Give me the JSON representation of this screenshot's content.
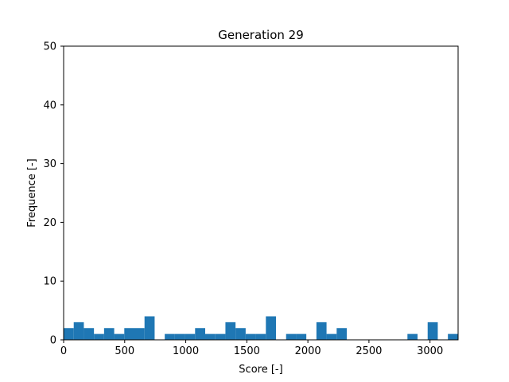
{
  "chart_data": {
    "type": "bar",
    "title": "Generation 29",
    "xlabel": "Score [-]",
    "ylabel": "Frequence [-]",
    "xlim": [
      0,
      3230
    ],
    "ylim": [
      0,
      50
    ],
    "xticks": [
      0,
      500,
      1000,
      1500,
      2000,
      2500,
      3000
    ],
    "yticks": [
      0,
      10,
      20,
      30,
      40,
      50
    ],
    "bin_width": 82.8,
    "bin_starts": [
      0,
      82.8,
      165.6,
      248.4,
      331.2,
      414,
      496.8,
      579.6,
      662.4,
      745.2,
      828,
      910.8,
      993.6,
      1076.4,
      1159.2,
      1242,
      1324.8,
      1407.6,
      1490.4,
      1573.2,
      1656,
      1738.8,
      1821.6,
      1904.4,
      1987.2,
      2070,
      2152.8,
      2235.6,
      2318.4,
      2401.2,
      2484,
      2566.8,
      2649.6,
      2732.4,
      2815.2,
      2898,
      2980.8,
      3063.6,
      3146.4
    ],
    "values": [
      2,
      3,
      2,
      1,
      2,
      1,
      2,
      2,
      4,
      0,
      1,
      1,
      1,
      2,
      1,
      1,
      3,
      2,
      1,
      1,
      4,
      0,
      1,
      1,
      0,
      3,
      1,
      2,
      0,
      0,
      0,
      0,
      0,
      0,
      1,
      0,
      3,
      0,
      1
    ],
    "bar_color": "#1f77b4",
    "grid": false
  }
}
